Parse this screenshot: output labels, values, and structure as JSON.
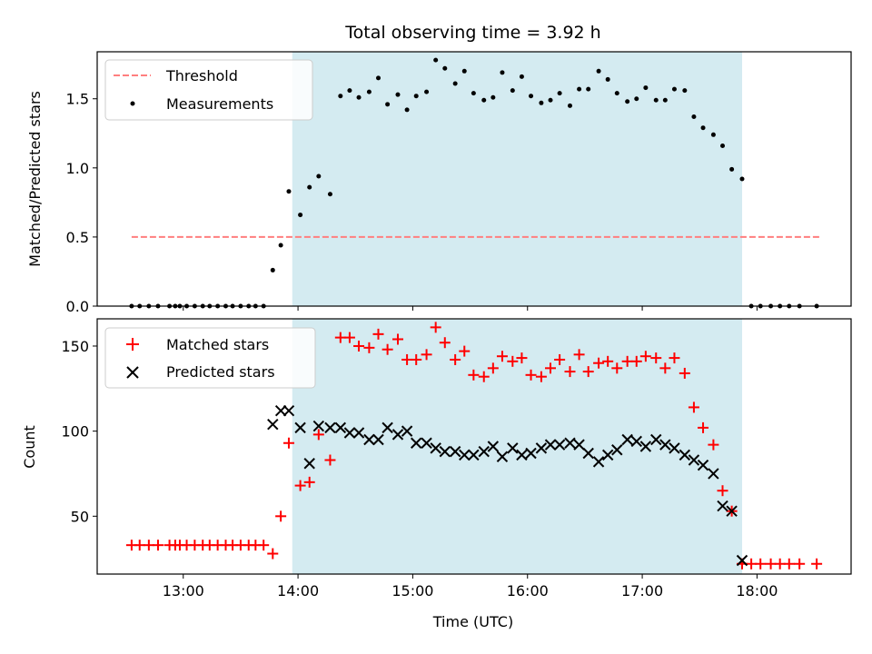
{
  "chart_data": {
    "type": "scatter",
    "title": "Total observing time = 3.92 h",
    "xlabel": "Time (UTC)",
    "x_unit": "hours UTC",
    "xlim": [
      12.25,
      18.82
    ],
    "xticks": [
      13,
      14,
      15,
      16,
      17,
      18
    ],
    "xtick_labels": [
      "13:00",
      "14:00",
      "15:00",
      "16:00",
      "17:00",
      "18:00"
    ],
    "observing_window": [
      13.95,
      17.87
    ],
    "window_color": "#d4ebf1",
    "panels": [
      {
        "ylabel": "Matched/Predicted stars",
        "ylim": [
          0,
          1.84
        ],
        "yticks": [
          0,
          0.5,
          1,
          1.5
        ],
        "ytick_labels": [
          "0.0",
          "0.5",
          "1.0",
          "1.5"
        ],
        "legend_position": "top-left",
        "legend": [
          "Threshold",
          "Measurements"
        ],
        "threshold": {
          "value": 0.5,
          "x": [
            12.55,
            18.55
          ],
          "color": "#ff7f7f",
          "style": "dashed"
        },
        "measurements": {
          "color": "#000000",
          "x": [
            12.55,
            12.62,
            12.7,
            12.78,
            12.88,
            12.93,
            12.97,
            13.03,
            13.1,
            13.17,
            13.23,
            13.3,
            13.37,
            13.43,
            13.5,
            13.57,
            13.63,
            13.7,
            13.78,
            13.85,
            13.92,
            14.02,
            14.1,
            14.18,
            14.28,
            14.37,
            14.45,
            14.53,
            14.62,
            14.7,
            14.78,
            14.87,
            14.95,
            15.03,
            15.12,
            15.2,
            15.28,
            15.37,
            15.45,
            15.53,
            15.62,
            15.7,
            15.78,
            15.87,
            15.95,
            16.03,
            16.12,
            16.2,
            16.28,
            16.37,
            16.45,
            16.53,
            16.62,
            16.7,
            16.78,
            16.87,
            16.95,
            17.03,
            17.12,
            17.2,
            17.28,
            17.37,
            17.45,
            17.53,
            17.62,
            17.7,
            17.78,
            17.87,
            17.95,
            18.03,
            18.12,
            18.2,
            18.28,
            18.37,
            18.52
          ],
          "y": [
            0,
            0,
            0,
            0,
            0,
            0,
            0,
            0,
            0,
            0,
            0,
            0,
            0,
            0,
            0,
            0,
            0,
            0,
            0.26,
            0.44,
            0.83,
            0.66,
            0.86,
            0.94,
            0.81,
            1.52,
            1.56,
            1.51,
            1.55,
            1.65,
            1.46,
            1.53,
            1.42,
            1.52,
            1.55,
            1.78,
            1.72,
            1.61,
            1.7,
            1.54,
            1.49,
            1.51,
            1.69,
            1.56,
            1.66,
            1.52,
            1.47,
            1.49,
            1.54,
            1.45,
            1.57,
            1.57,
            1.7,
            1.64,
            1.54,
            1.48,
            1.5,
            1.58,
            1.49,
            1.49,
            1.57,
            1.56,
            1.37,
            1.29,
            1.24,
            1.16,
            0.99,
            0.92,
            0,
            0,
            0,
            0,
            0,
            0,
            0
          ]
        }
      },
      {
        "ylabel": "Count",
        "ylim": [
          16,
          166
        ],
        "yticks": [
          50,
          100,
          150
        ],
        "ytick_labels": [
          "50",
          "100",
          "150"
        ],
        "legend_position": "top-left",
        "legend": [
          "Matched stars",
          "Predicted stars"
        ],
        "series": [
          {
            "name": "Matched stars",
            "marker": "plus",
            "color": "#ff0000",
            "x": [
              12.55,
              12.62,
              12.7,
              12.78,
              12.88,
              12.93,
              12.97,
              13.03,
              13.1,
              13.17,
              13.23,
              13.3,
              13.37,
              13.43,
              13.5,
              13.57,
              13.63,
              13.7,
              13.78,
              13.85,
              13.92,
              14.02,
              14.1,
              14.18,
              14.28,
              14.37,
              14.45,
              14.53,
              14.62,
              14.7,
              14.78,
              14.87,
              14.95,
              15.03,
              15.12,
              15.2,
              15.28,
              15.37,
              15.45,
              15.53,
              15.62,
              15.7,
              15.78,
              15.87,
              15.95,
              16.03,
              16.12,
              16.2,
              16.28,
              16.37,
              16.45,
              16.53,
              16.62,
              16.7,
              16.78,
              16.87,
              16.95,
              17.03,
              17.12,
              17.2,
              17.28,
              17.37,
              17.45,
              17.53,
              17.62,
              17.7,
              17.78,
              17.87,
              17.95,
              18.03,
              18.12,
              18.2,
              18.28,
              18.37,
              18.52
            ],
            "y": [
              33,
              33,
              33,
              33,
              33,
              33,
              33,
              33,
              33,
              33,
              33,
              33,
              33,
              33,
              33,
              33,
              33,
              33,
              28,
              50,
              93,
              68,
              70,
              98,
              83,
              155,
              155,
              150,
              149,
              157,
              148,
              154,
              142,
              142,
              145,
              161,
              152,
              142,
              147,
              133,
              132,
              137,
              144,
              141,
              143,
              133,
              132,
              137,
              142,
              135,
              145,
              135,
              140,
              141,
              137,
              141,
              141,
              144,
              143,
              137,
              143,
              134,
              114,
              102,
              92,
              65,
              53,
              22,
              22,
              22,
              22,
              22,
              22,
              22,
              22
            ]
          },
          {
            "name": "Predicted stars",
            "marker": "x",
            "color": "#000000",
            "x": [
              13.78,
              13.85,
              13.92,
              14.02,
              14.1,
              14.18,
              14.28,
              14.37,
              14.45,
              14.53,
              14.62,
              14.7,
              14.78,
              14.87,
              14.95,
              15.03,
              15.12,
              15.2,
              15.28,
              15.37,
              15.45,
              15.53,
              15.62,
              15.7,
              15.78,
              15.87,
              15.95,
              16.03,
              16.12,
              16.2,
              16.28,
              16.37,
              16.45,
              16.53,
              16.62,
              16.7,
              16.78,
              16.87,
              16.95,
              17.03,
              17.12,
              17.2,
              17.28,
              17.37,
              17.45,
              17.53,
              17.62,
              17.7,
              17.78,
              17.87
            ],
            "y": [
              104,
              112,
              112,
              102,
              81,
              103,
              102,
              102,
              99,
              99,
              95,
              95,
              102,
              98,
              100,
              93,
              93,
              90,
              88,
              88,
              86,
              86,
              88,
              91,
              85,
              90,
              86,
              87,
              90,
              92,
              92,
              93,
              92,
              87,
              82,
              86,
              89,
              95,
              94,
              91,
              95,
              92,
              90,
              86,
              83,
              80,
              75,
              56,
              53,
              24
            ]
          }
        ]
      }
    ]
  }
}
